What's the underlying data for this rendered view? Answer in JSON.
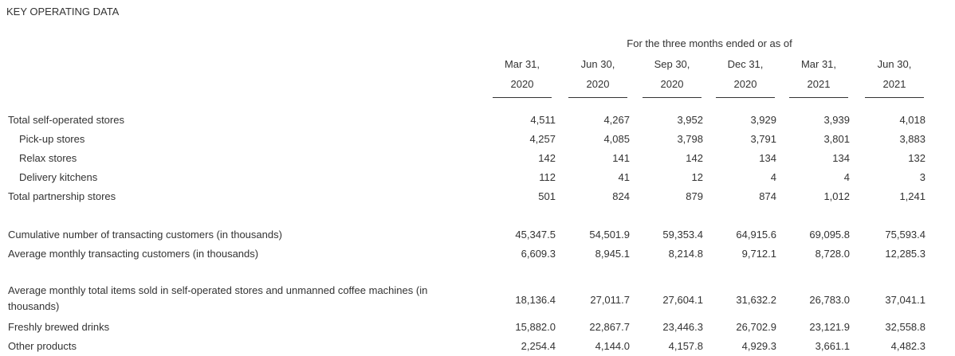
{
  "title": "KEY OPERATING DATA",
  "period_header": "For the three months ended or as of",
  "columns": [
    {
      "line1": "Mar 31,",
      "line2": "2020"
    },
    {
      "line1": "Jun 30,",
      "line2": "2020"
    },
    {
      "line1": "Sep 30,",
      "line2": "2020"
    },
    {
      "line1": "Dec 31,",
      "line2": "2020"
    },
    {
      "line1": "Mar 31,",
      "line2": "2021"
    },
    {
      "line1": "Jun 30,",
      "line2": "2021"
    }
  ],
  "rows": [
    {
      "label": "Total self-operated stores",
      "values": [
        "4,511",
        "4,267",
        "3,952",
        "3,929",
        "3,939",
        "4,018"
      ]
    },
    {
      "label": "Pick-up stores",
      "values": [
        "4,257",
        "4,085",
        "3,798",
        "3,791",
        "3,801",
        "3,883"
      ]
    },
    {
      "label": "Relax stores",
      "values": [
        "142",
        "141",
        "142",
        "134",
        "134",
        "132"
      ]
    },
    {
      "label": "Delivery kitchens",
      "values": [
        "112",
        "41",
        "12",
        "4",
        "4",
        "3"
      ]
    },
    {
      "label": "Total partnership stores",
      "values": [
        "501",
        "824",
        "879",
        "874",
        "1,012",
        "1,241"
      ]
    },
    {
      "label": "Cumulative number of transacting customers (in thousands)",
      "values": [
        "45,347.5",
        "54,501.9",
        "59,353.4",
        "64,915.6",
        "69,095.8",
        "75,593.4"
      ]
    },
    {
      "label": "Average monthly transacting customers (in thousands)",
      "values": [
        "6,609.3",
        "8,945.1",
        "8,214.8",
        "9,712.1",
        "8,728.0",
        "12,285.3"
      ]
    },
    {
      "label": "Average monthly total items sold in self-operated stores and unmanned coffee machines (in thousands)",
      "values": [
        "18,136.4",
        "27,011.7",
        "27,604.1",
        "31,632.2",
        "26,783.0",
        "37,041.1"
      ]
    },
    {
      "label": "Freshly brewed drinks",
      "values": [
        "15,882.0",
        "22,867.7",
        "23,446.3",
        "26,702.9",
        "23,121.9",
        "32,558.8"
      ]
    },
    {
      "label": "Other products",
      "values": [
        "2,254.4",
        "4,144.0",
        "4,157.8",
        "4,929.3",
        "3,661.1",
        "4,482.3"
      ]
    }
  ]
}
